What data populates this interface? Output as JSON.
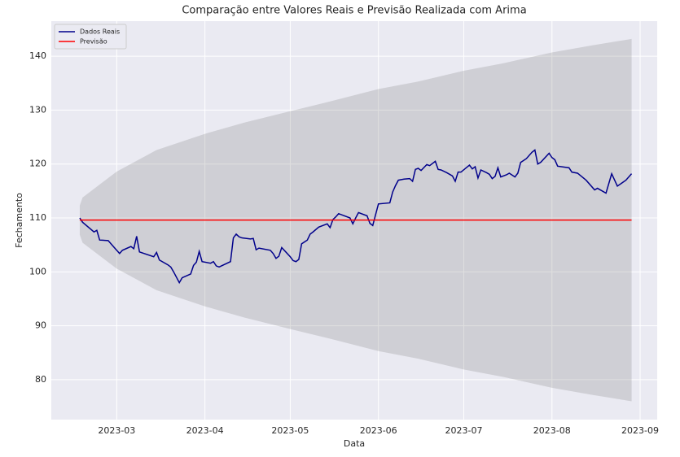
{
  "chart_data": {
    "type": "line",
    "title": "Comparação entre Valores Reais e Previsão Realizada com Arima",
    "xlabel": "Data",
    "ylabel": "Fechamento",
    "xlim": [
      "2023-02-06",
      "2023-09-07"
    ],
    "xticks": [
      "2023-03",
      "2023-04",
      "2023-05",
      "2023-06",
      "2023-07",
      "2023-08",
      "2023-09"
    ],
    "ylim": [
      72.6,
      146.5
    ],
    "yticks": [
      80,
      90,
      100,
      110,
      120,
      130,
      140
    ],
    "grid": true,
    "legend": "upper left",
    "band": {
      "color": "#808080",
      "x": [
        "2023-02-16",
        "2023-02-17",
        "2023-03-01",
        "2023-03-15",
        "2023-04-01",
        "2023-04-15",
        "2023-05-01",
        "2023-05-15",
        "2023-06-01",
        "2023-06-15",
        "2023-07-01",
        "2023-07-15",
        "2023-08-01",
        "2023-08-15",
        "2023-08-29"
      ],
      "lower": [
        106.9,
        105.4,
        100.6,
        96.6,
        93.6,
        91.5,
        89.4,
        87.6,
        85.3,
        83.9,
        81.9,
        80.5,
        78.5,
        77.2,
        76.0
      ],
      "upper": [
        112.3,
        113.8,
        118.6,
        122.6,
        125.6,
        127.7,
        129.8,
        131.6,
        133.9,
        135.3,
        137.3,
        138.7,
        140.7,
        142.0,
        143.2
      ]
    },
    "series": [
      {
        "name": "Dados Reais",
        "color": "#00008b",
        "x": [
          "2023-02-16",
          "2023-02-17",
          "2023-02-21",
          "2023-02-22",
          "2023-02-23",
          "2023-02-26",
          "2023-02-28",
          "2023-03-02",
          "2023-03-03",
          "2023-03-06",
          "2023-03-07",
          "2023-03-08",
          "2023-03-09",
          "2023-03-14",
          "2023-03-15",
          "2023-03-16",
          "2023-03-19",
          "2023-03-20",
          "2023-03-21",
          "2023-03-23",
          "2023-03-24",
          "2023-03-27",
          "2023-03-28",
          "2023-03-29",
          "2023-03-30",
          "2023-03-31",
          "2023-04-03",
          "2023-04-04",
          "2023-04-05",
          "2023-04-06",
          "2023-04-10",
          "2023-04-11",
          "2023-04-12",
          "2023-04-13",
          "2023-04-14",
          "2023-04-17",
          "2023-04-18",
          "2023-04-19",
          "2023-04-20",
          "2023-04-24",
          "2023-04-25",
          "2023-04-26",
          "2023-04-27",
          "2023-04-28",
          "2023-05-01",
          "2023-05-02",
          "2023-05-03",
          "2023-05-04",
          "2023-05-05",
          "2023-05-07",
          "2023-05-08",
          "2023-05-09",
          "2023-05-11",
          "2023-05-14",
          "2023-05-15",
          "2023-05-16",
          "2023-05-17",
          "2023-05-18",
          "2023-05-22",
          "2023-05-23",
          "2023-05-24",
          "2023-05-25",
          "2023-05-28",
          "2023-05-29",
          "2023-05-30",
          "2023-06-01",
          "2023-06-05",
          "2023-06-06",
          "2023-06-07",
          "2023-06-08",
          "2023-06-10",
          "2023-06-12",
          "2023-06-13",
          "2023-06-14",
          "2023-06-15",
          "2023-06-16",
          "2023-06-18",
          "2023-06-19",
          "2023-06-21",
          "2023-06-22",
          "2023-06-23",
          "2023-06-25",
          "2023-06-27",
          "2023-06-28",
          "2023-06-29",
          "2023-06-30",
          "2023-07-03",
          "2023-07-04",
          "2023-07-05",
          "2023-07-06",
          "2023-07-07",
          "2023-07-09",
          "2023-07-10",
          "2023-07-11",
          "2023-07-12",
          "2023-07-13",
          "2023-07-14",
          "2023-07-16",
          "2023-07-17",
          "2023-07-19",
          "2023-07-20",
          "2023-07-21",
          "2023-07-23",
          "2023-07-25",
          "2023-07-26",
          "2023-07-27",
          "2023-07-28",
          "2023-07-31",
          "2023-08-01",
          "2023-08-02",
          "2023-08-03",
          "2023-08-07",
          "2023-08-08",
          "2023-08-10",
          "2023-08-13",
          "2023-08-16",
          "2023-08-17",
          "2023-08-20",
          "2023-08-22",
          "2023-08-24",
          "2023-08-27",
          "2023-08-29"
        ],
        "values": [
          110.0,
          109.2,
          107.4,
          107.7,
          105.9,
          105.8,
          104.6,
          103.4,
          104.0,
          104.7,
          104.3,
          106.6,
          103.7,
          102.8,
          103.6,
          102.2,
          101.3,
          100.9,
          100.0,
          98.0,
          98.9,
          99.6,
          101.2,
          101.8,
          103.8,
          101.9,
          101.6,
          101.9,
          101.1,
          100.9,
          101.9,
          106.3,
          107.0,
          106.5,
          106.3,
          106.1,
          106.2,
          104.1,
          104.4,
          104.0,
          103.4,
          102.5,
          102.9,
          104.5,
          102.8,
          102.1,
          101.9,
          102.3,
          105.2,
          105.9,
          107.0,
          107.4,
          108.3,
          108.9,
          108.2,
          109.7,
          110.2,
          110.8,
          110.0,
          108.9,
          110.0,
          111.0,
          110.4,
          109.0,
          108.6,
          112.6,
          112.8,
          114.8,
          116.0,
          117.0,
          117.2,
          117.3,
          116.8,
          119.0,
          119.2,
          118.8,
          119.9,
          119.7,
          120.5,
          119.0,
          118.9,
          118.4,
          117.8,
          116.8,
          118.5,
          118.5,
          119.8,
          119.1,
          119.5,
          117.4,
          118.9,
          118.4,
          118.1,
          117.3,
          117.7,
          119.3,
          117.6,
          118.0,
          118.3,
          117.6,
          118.3,
          120.3,
          121.0,
          122.2,
          122.6,
          120.0,
          120.3,
          122.0,
          121.2,
          120.8,
          119.6,
          119.3,
          118.5,
          118.3,
          117.0,
          115.2,
          115.5,
          114.6,
          118.2,
          115.9,
          117.0,
          118.2
        ]
      },
      {
        "name": "Previsão",
        "color": "#ff0000",
        "x": [
          "2023-02-16",
          "2023-08-29"
        ],
        "values": [
          109.6,
          109.6
        ]
      }
    ]
  }
}
